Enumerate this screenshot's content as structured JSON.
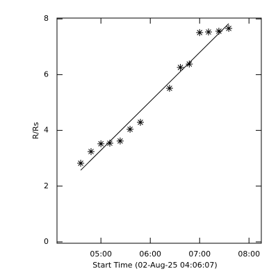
{
  "chart_data": {
    "type": "scatter",
    "x_label": "Start Time (02-Aug-25 04:06:07)",
    "y_label": "R/Rs",
    "x": [
      4.59,
      4.8,
      5.0,
      5.18,
      5.39,
      5.59,
      5.8,
      6.39,
      6.61,
      6.79,
      7.0,
      7.18,
      7.39,
      7.59
    ],
    "values": [
      2.82,
      3.24,
      3.52,
      3.54,
      3.62,
      4.04,
      4.29,
      5.51,
      6.26,
      6.38,
      7.51,
      7.53,
      7.56,
      7.66
    ],
    "fit": {
      "x": [
        4.59,
        7.59
      ],
      "values": [
        2.57,
        7.83
      ]
    },
    "color": "#000000",
    "xlim": [
      4.11,
      8.25
    ],
    "xticks": [
      {
        "value": 5,
        "label": "05:00"
      },
      {
        "value": 6,
        "label": "06:00"
      },
      {
        "value": 7,
        "label": "07:00"
      },
      {
        "value": 8,
        "label": "08:00"
      }
    ],
    "ylim": [
      -0.05,
      8.03
    ],
    "yticks": [
      0,
      2,
      4,
      6,
      8
    ]
  }
}
